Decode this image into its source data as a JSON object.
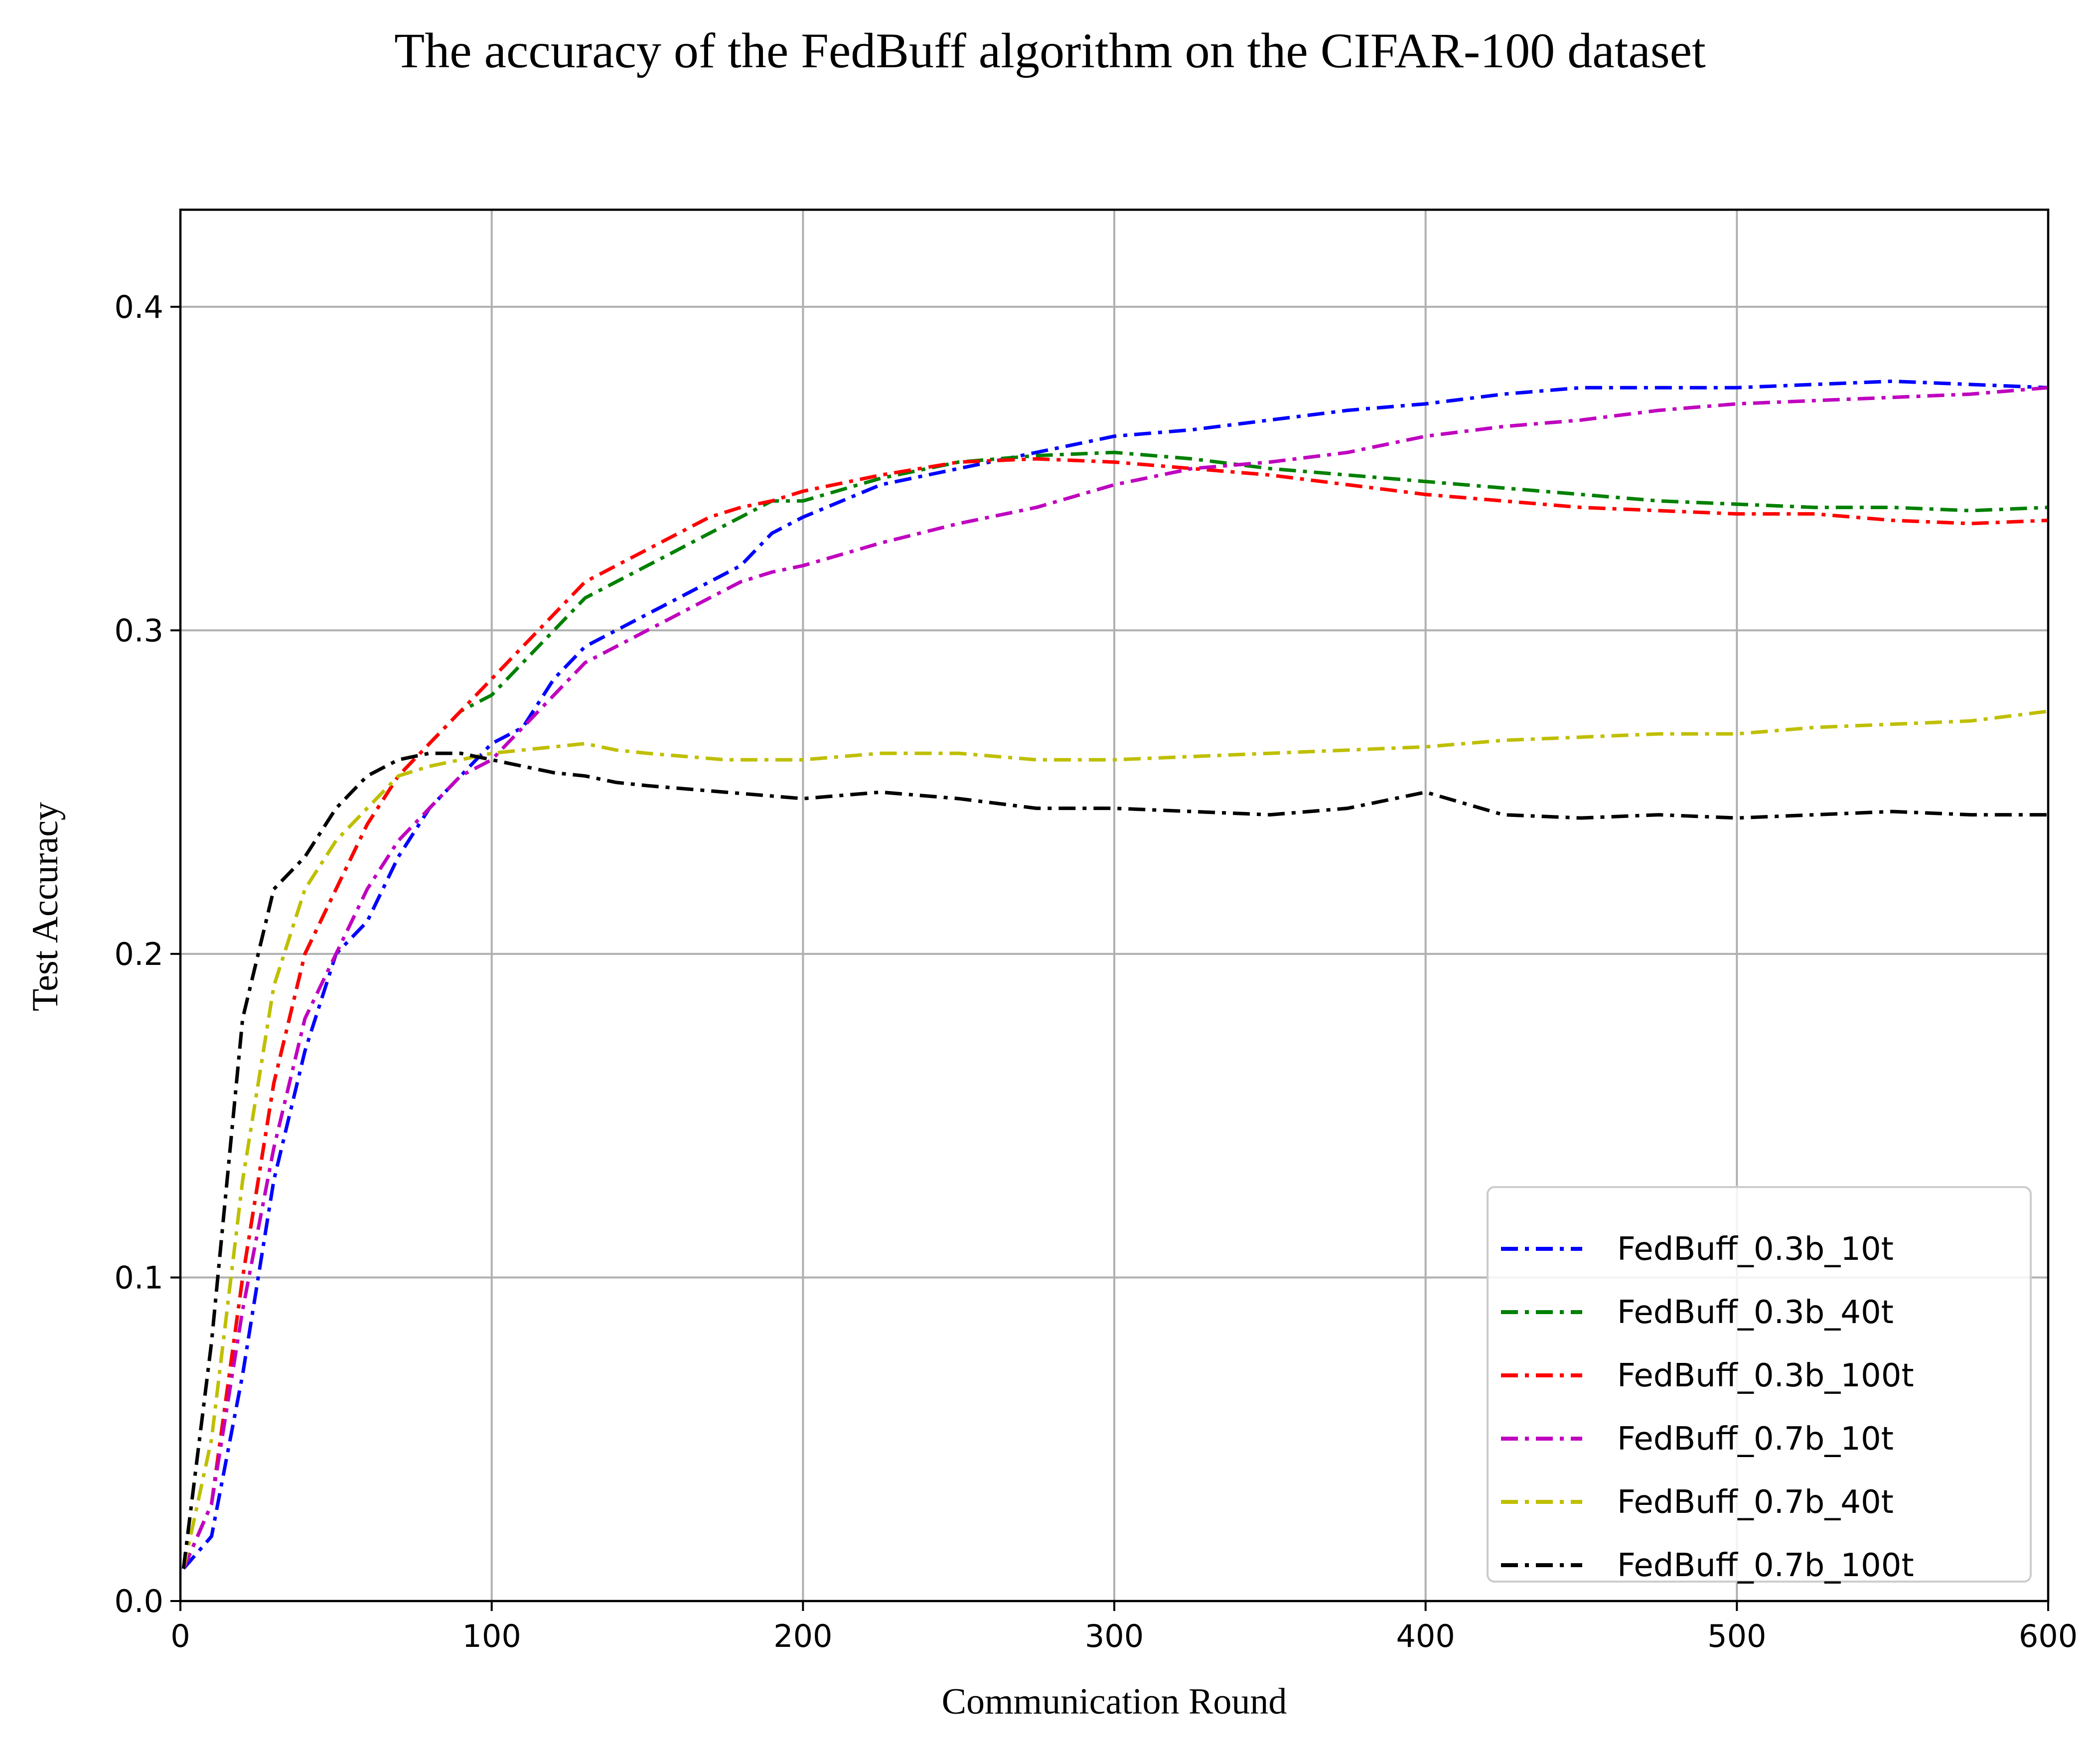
{
  "chart_data": {
    "type": "line",
    "title": "The accuracy of the FedBuff algorithm on the CIFAR-100 dataset",
    "xlabel": "Communication Round",
    "ylabel": "Test Accuracy",
    "xlim": [
      0,
      600
    ],
    "ylim": [
      0,
      0.43
    ],
    "xticks": [
      "0",
      "100",
      "200",
      "300",
      "400",
      "500",
      "600"
    ],
    "yticks": [
      "0.0",
      "0.1",
      "0.2",
      "0.3",
      "0.4"
    ],
    "grid": true,
    "legend_position": "lower-right",
    "line_style": "dash-dot",
    "series": [
      {
        "name": "FedBuff_0.3b_10t",
        "color": "#0000ff",
        "x": [
          1,
          10,
          20,
          30,
          40,
          50,
          60,
          70,
          80,
          90,
          100,
          110,
          120,
          130,
          140,
          150,
          160,
          170,
          180,
          190,
          200,
          225,
          250,
          275,
          300,
          325,
          350,
          375,
          400,
          425,
          450,
          475,
          500,
          525,
          550,
          575,
          600
        ],
        "values": [
          0.01,
          0.02,
          0.07,
          0.13,
          0.17,
          0.2,
          0.21,
          0.23,
          0.245,
          0.255,
          0.265,
          0.27,
          0.285,
          0.295,
          0.3,
          0.305,
          0.31,
          0.315,
          0.32,
          0.33,
          0.335,
          0.345,
          0.35,
          0.355,
          0.36,
          0.362,
          0.365,
          0.368,
          0.37,
          0.373,
          0.375,
          0.375,
          0.375,
          0.376,
          0.377,
          0.376,
          0.375
        ]
      },
      {
        "name": "FedBuff_0.3b_40t",
        "color": "#008000",
        "x": [
          1,
          10,
          20,
          30,
          40,
          50,
          60,
          70,
          80,
          90,
          100,
          110,
          120,
          130,
          140,
          150,
          160,
          170,
          180,
          190,
          200,
          225,
          250,
          275,
          300,
          325,
          350,
          375,
          400,
          425,
          450,
          475,
          500,
          525,
          550,
          575,
          600
        ],
        "values": [
          0.01,
          0.03,
          0.1,
          0.16,
          0.2,
          0.22,
          0.24,
          0.255,
          0.265,
          0.275,
          0.28,
          0.29,
          0.3,
          0.31,
          0.315,
          0.32,
          0.325,
          0.33,
          0.335,
          0.34,
          0.34,
          0.347,
          0.352,
          0.354,
          0.355,
          0.353,
          0.35,
          0.348,
          0.346,
          0.344,
          0.342,
          0.34,
          0.339,
          0.338,
          0.338,
          0.337,
          0.338
        ]
      },
      {
        "name": "FedBuff_0.3b_100t",
        "color": "#ff0000",
        "x": [
          1,
          10,
          20,
          30,
          40,
          50,
          60,
          70,
          80,
          90,
          100,
          110,
          120,
          130,
          140,
          150,
          160,
          170,
          180,
          190,
          200,
          225,
          250,
          275,
          300,
          325,
          350,
          375,
          400,
          425,
          450,
          475,
          500,
          525,
          550,
          575,
          600
        ],
        "values": [
          0.01,
          0.03,
          0.1,
          0.16,
          0.2,
          0.22,
          0.24,
          0.255,
          0.265,
          0.275,
          0.285,
          0.295,
          0.305,
          0.315,
          0.32,
          0.325,
          0.33,
          0.335,
          0.338,
          0.34,
          0.343,
          0.348,
          0.352,
          0.353,
          0.352,
          0.35,
          0.348,
          0.345,
          0.342,
          0.34,
          0.338,
          0.337,
          0.336,
          0.336,
          0.334,
          0.333,
          0.334
        ]
      },
      {
        "name": "FedBuff_0.7b_10t",
        "color": "#bf00bf",
        "x": [
          1,
          10,
          20,
          30,
          40,
          50,
          60,
          70,
          80,
          90,
          100,
          110,
          120,
          130,
          140,
          150,
          160,
          170,
          180,
          190,
          200,
          225,
          250,
          275,
          300,
          325,
          350,
          375,
          400,
          425,
          450,
          475,
          500,
          525,
          550,
          575,
          600
        ],
        "values": [
          0.01,
          0.03,
          0.09,
          0.14,
          0.18,
          0.2,
          0.22,
          0.235,
          0.245,
          0.255,
          0.26,
          0.27,
          0.28,
          0.29,
          0.295,
          0.3,
          0.305,
          0.31,
          0.315,
          0.318,
          0.32,
          0.327,
          0.333,
          0.338,
          0.345,
          0.35,
          0.352,
          0.355,
          0.36,
          0.363,
          0.365,
          0.368,
          0.37,
          0.371,
          0.372,
          0.373,
          0.375
        ]
      },
      {
        "name": "FedBuff_0.7b_40t",
        "color": "#bfbf00",
        "x": [
          1,
          10,
          20,
          30,
          40,
          50,
          60,
          70,
          80,
          90,
          100,
          110,
          120,
          130,
          140,
          150,
          175,
          200,
          225,
          250,
          275,
          300,
          325,
          350,
          375,
          400,
          425,
          450,
          475,
          500,
          525,
          550,
          575,
          600
        ],
        "values": [
          0.01,
          0.05,
          0.13,
          0.19,
          0.22,
          0.235,
          0.245,
          0.255,
          0.258,
          0.26,
          0.262,
          0.263,
          0.264,
          0.265,
          0.263,
          0.262,
          0.26,
          0.26,
          0.262,
          0.262,
          0.26,
          0.26,
          0.261,
          0.262,
          0.263,
          0.264,
          0.266,
          0.267,
          0.268,
          0.268,
          0.27,
          0.271,
          0.272,
          0.275
        ]
      },
      {
        "name": "FedBuff_0.7b_100t",
        "color": "#000000",
        "x": [
          1,
          10,
          20,
          30,
          40,
          50,
          60,
          70,
          80,
          90,
          100,
          110,
          120,
          130,
          140,
          150,
          175,
          200,
          225,
          250,
          275,
          300,
          325,
          350,
          375,
          400,
          425,
          450,
          475,
          500,
          525,
          550,
          575,
          600
        ],
        "values": [
          0.01,
          0.08,
          0.18,
          0.22,
          0.23,
          0.245,
          0.255,
          0.26,
          0.262,
          0.262,
          0.26,
          0.258,
          0.256,
          0.255,
          0.253,
          0.252,
          0.25,
          0.248,
          0.25,
          0.248,
          0.245,
          0.245,
          0.244,
          0.243,
          0.245,
          0.25,
          0.243,
          0.242,
          0.243,
          0.242,
          0.243,
          0.244,
          0.243,
          0.243
        ]
      }
    ]
  }
}
